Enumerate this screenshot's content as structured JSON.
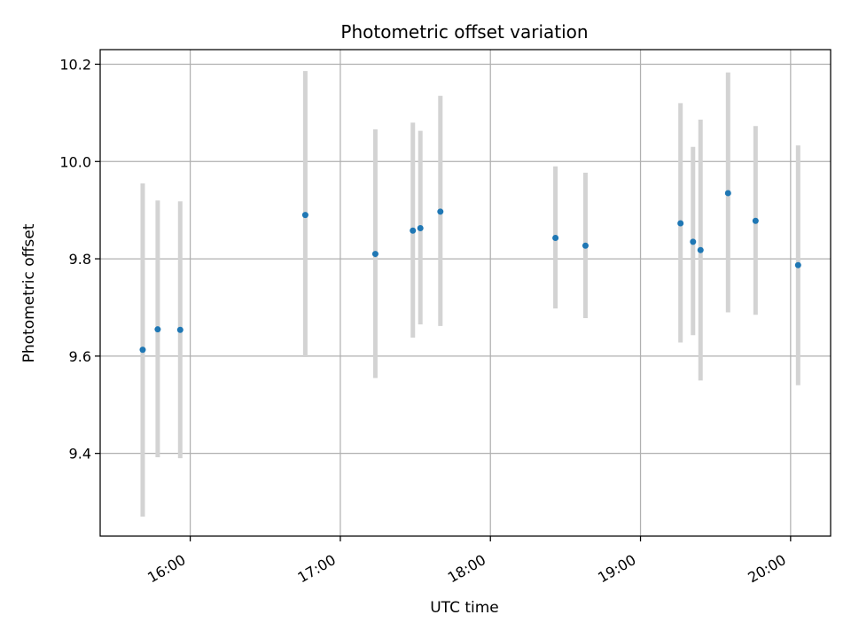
{
  "chart_data": {
    "type": "scatter",
    "title": "Photometric offset variation",
    "xlabel": "UTC time",
    "ylabel": "Photometric offset",
    "x_tick_labels": [
      "16:00",
      "17:00",
      "18:00",
      "19:00",
      "20:00"
    ],
    "y_tick_labels": [
      "9.4",
      "9.6",
      "9.8",
      "10.0",
      "10.2"
    ],
    "y_ticks": [
      9.4,
      9.6,
      9.8,
      10.0,
      10.2
    ],
    "xlim": [
      "15:24",
      "20:16"
    ],
    "ylim": [
      9.23,
      10.23
    ],
    "grid": true,
    "marker_color": "#1f77b4",
    "errorbar_color": "#d3d3d3",
    "points": [
      {
        "time": "15:41",
        "y": 9.613,
        "ylow": 9.27,
        "yhigh": 9.955
      },
      {
        "time": "15:47",
        "y": 9.655,
        "ylow": 9.392,
        "yhigh": 9.92
      },
      {
        "time": "15:56",
        "y": 9.654,
        "ylow": 9.39,
        "yhigh": 9.918
      },
      {
        "time": "16:46",
        "y": 9.89,
        "ylow": 9.598,
        "yhigh": 10.186
      },
      {
        "time": "17:14",
        "y": 9.81,
        "ylow": 9.555,
        "yhigh": 10.066
      },
      {
        "time": "17:29",
        "y": 9.858,
        "ylow": 9.638,
        "yhigh": 10.08
      },
      {
        "time": "17:32",
        "y": 9.863,
        "ylow": 9.665,
        "yhigh": 10.063
      },
      {
        "time": "17:40",
        "y": 9.897,
        "ylow": 9.662,
        "yhigh": 10.135
      },
      {
        "time": "18:26",
        "y": 9.843,
        "ylow": 9.698,
        "yhigh": 9.99
      },
      {
        "time": "18:38",
        "y": 9.827,
        "ylow": 9.678,
        "yhigh": 9.977
      },
      {
        "time": "19:16",
        "y": 9.873,
        "ylow": 9.628,
        "yhigh": 10.12
      },
      {
        "time": "19:21",
        "y": 9.835,
        "ylow": 9.643,
        "yhigh": 10.03
      },
      {
        "time": "19:24",
        "y": 9.818,
        "ylow": 9.55,
        "yhigh": 10.086
      },
      {
        "time": "19:35",
        "y": 9.935,
        "ylow": 9.69,
        "yhigh": 10.183
      },
      {
        "time": "19:46",
        "y": 9.878,
        "ylow": 9.685,
        "yhigh": 10.073
      },
      {
        "time": "20:03",
        "y": 9.787,
        "ylow": 9.54,
        "yhigh": 10.033
      }
    ]
  }
}
